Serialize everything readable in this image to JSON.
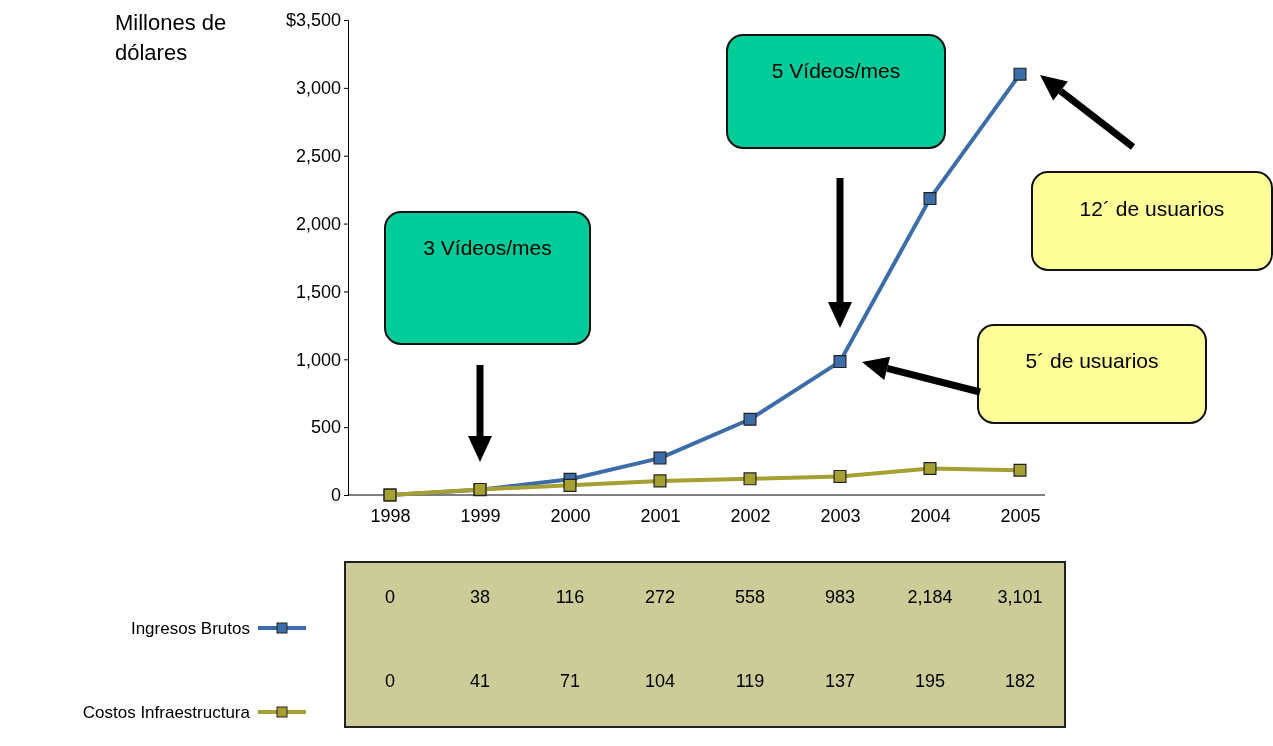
{
  "chart_data": {
    "type": "line",
    "ylabel": "Millones de dólares",
    "categories": [
      "1998",
      "1999",
      "2000",
      "2001",
      "2002",
      "2003",
      "2004",
      "2005"
    ],
    "series": [
      {
        "name": "Ingresos Brutos",
        "color": "#3d6da8",
        "values": [
          0,
          38,
          116,
          272,
          558,
          983,
          2184,
          3101
        ],
        "value_labels": [
          "0",
          "38",
          "116",
          "272",
          "558",
          "983",
          "2,184",
          "3,101"
        ]
      },
      {
        "name": "Costos Infraestructura",
        "color": "#a6a032",
        "values": [
          0,
          41,
          71,
          104,
          119,
          137,
          195,
          182
        ],
        "value_labels": [
          "0",
          "41",
          "71",
          "104",
          "119",
          "137",
          "195",
          "182"
        ]
      }
    ],
    "ylim": [
      0,
      3500
    ],
    "yticks": [
      0,
      500,
      {
        "value": 1000,
        "label": "1,000"
      },
      {
        "value": 1500,
        "label": "1,500"
      },
      {
        "value": 2000,
        "label": "2,000"
      },
      {
        "value": 2500,
        "label": "2,500"
      },
      {
        "value": 3000,
        "label": "3,000"
      },
      {
        "value": 3500,
        "label": "$3,500"
      }
    ],
    "marker": "square",
    "line_style": "solid",
    "grid": false,
    "legend": "bottom left",
    "annotations": [
      "3 Vídeos/mes",
      "5 Vídeos/mes",
      "12´ de usuarios",
      "5´ de usuarios"
    ]
  }
}
